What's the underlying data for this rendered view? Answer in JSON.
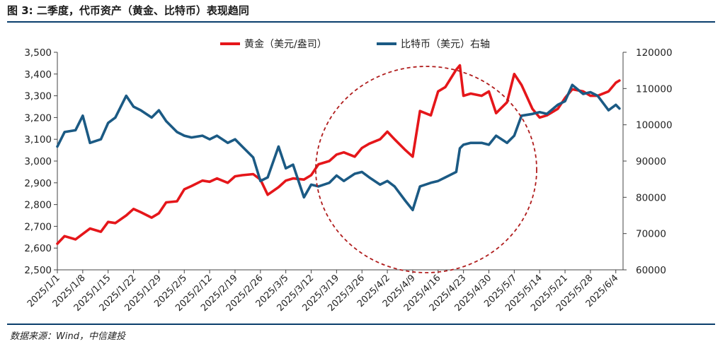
{
  "header": {
    "title": "图 3: 二季度，代币资产（黄金、比特币）表现趋同"
  },
  "footer": {
    "source": "数据来源：Wind，中信建投"
  },
  "chart_data": {
    "type": "line",
    "title": "",
    "legend_position": "top-center",
    "grid": false,
    "x_ticks": [
      "2025/1/1",
      "2025/1/8",
      "2025/1/15",
      "2025/1/22",
      "2025/1/29",
      "2025/2/5",
      "2025/2/12",
      "2025/2/19",
      "2025/2/26",
      "2025/3/5",
      "2025/3/12",
      "2025/3/19",
      "2025/3/26",
      "2025/4/2",
      "2025/4/9",
      "2025/4/16",
      "2025/4/23",
      "2025/4/30",
      "2025/5/7",
      "2025/5/14",
      "2025/5/21",
      "2025/5/28",
      "2025/6/4"
    ],
    "x_range": [
      "2025/1/1",
      "2025/6/6"
    ],
    "y_left": {
      "ylim": [
        2500,
        3500
      ],
      "ticks": [
        "2,500",
        "2,600",
        "2,700",
        "2,800",
        "2,900",
        "3,000",
        "3,100",
        "3,200",
        "3,300",
        "3,400",
        "3,500"
      ]
    },
    "y_right": {
      "ylim": [
        60000,
        120000
      ],
      "ticks": [
        "60000",
        "70000",
        "80000",
        "90000",
        "100000",
        "110000",
        "120000"
      ]
    },
    "annotation": {
      "shape": "dashed-circle",
      "color": "#b01c1c"
    },
    "series": [
      {
        "name": "黄金（美元/盎司）",
        "axis": "left",
        "color": "#e5161a",
        "x": [
          "2025/1/1",
          "2025/1/3",
          "2025/1/6",
          "2025/1/8",
          "2025/1/10",
          "2025/1/13",
          "2025/1/15",
          "2025/1/17",
          "2025/1/20",
          "2025/1/22",
          "2025/1/24",
          "2025/1/27",
          "2025/1/29",
          "2025/1/31",
          "2025/2/3",
          "2025/2/5",
          "2025/2/7",
          "2025/2/10",
          "2025/2/12",
          "2025/2/14",
          "2025/2/17",
          "2025/2/19",
          "2025/2/21",
          "2025/2/24",
          "2025/2/26",
          "2025/2/28",
          "2025/3/3",
          "2025/3/5",
          "2025/3/7",
          "2025/3/10",
          "2025/3/12",
          "2025/3/14",
          "2025/3/17",
          "2025/3/19",
          "2025/3/21",
          "2025/3/24",
          "2025/3/26",
          "2025/3/28",
          "2025/3/31",
          "2025/4/2",
          "2025/4/4",
          "2025/4/7",
          "2025/4/9",
          "2025/4/11",
          "2025/4/14",
          "2025/4/16",
          "2025/4/18",
          "2025/4/21",
          "2025/4/22",
          "2025/4/23",
          "2025/4/25",
          "2025/4/28",
          "2025/4/30",
          "2025/5/2",
          "2025/5/5",
          "2025/5/7",
          "2025/5/9",
          "2025/5/12",
          "2025/5/14",
          "2025/5/16",
          "2025/5/19",
          "2025/5/21",
          "2025/5/23",
          "2025/5/26",
          "2025/5/28",
          "2025/5/30",
          "2025/6/2",
          "2025/6/4",
          "2025/6/5"
        ],
        "values": [
          2620,
          2655,
          2640,
          2665,
          2690,
          2675,
          2720,
          2715,
          2750,
          2780,
          2765,
          2740,
          2760,
          2810,
          2815,
          2870,
          2885,
          2910,
          2905,
          2920,
          2900,
          2930,
          2935,
          2940,
          2915,
          2845,
          2880,
          2910,
          2920,
          2915,
          2935,
          2985,
          3000,
          3030,
          3040,
          3020,
          3060,
          3080,
          3100,
          3135,
          3100,
          3050,
          3020,
          3230,
          3210,
          3320,
          3340,
          3420,
          3440,
          3300,
          3310,
          3300,
          3320,
          3220,
          3270,
          3400,
          3350,
          3240,
          3200,
          3210,
          3240,
          3290,
          3330,
          3320,
          3300,
          3300,
          3320,
          3360,
          3370
        ]
      },
      {
        "name": "比特币（美元）右轴",
        "axis": "right",
        "color": "#1b5a84",
        "x": [
          "2025/1/1",
          "2025/1/3",
          "2025/1/6",
          "2025/1/8",
          "2025/1/10",
          "2025/1/13",
          "2025/1/15",
          "2025/1/17",
          "2025/1/20",
          "2025/1/22",
          "2025/1/24",
          "2025/1/27",
          "2025/1/29",
          "2025/1/31",
          "2025/2/3",
          "2025/2/5",
          "2025/2/7",
          "2025/2/10",
          "2025/2/12",
          "2025/2/14",
          "2025/2/17",
          "2025/2/19",
          "2025/2/21",
          "2025/2/24",
          "2025/2/26",
          "2025/2/28",
          "2025/3/3",
          "2025/3/5",
          "2025/3/7",
          "2025/3/10",
          "2025/3/12",
          "2025/3/14",
          "2025/3/17",
          "2025/3/19",
          "2025/3/21",
          "2025/3/24",
          "2025/3/26",
          "2025/3/28",
          "2025/3/31",
          "2025/4/2",
          "2025/4/4",
          "2025/4/7",
          "2025/4/9",
          "2025/4/11",
          "2025/4/14",
          "2025/4/16",
          "2025/4/18",
          "2025/4/21",
          "2025/4/22",
          "2025/4/23",
          "2025/4/25",
          "2025/4/28",
          "2025/4/30",
          "2025/5/2",
          "2025/5/5",
          "2025/5/7",
          "2025/5/9",
          "2025/5/12",
          "2025/5/14",
          "2025/5/16",
          "2025/5/19",
          "2025/5/21",
          "2025/5/23",
          "2025/5/26",
          "2025/5/28",
          "2025/5/30",
          "2025/6/2",
          "2025/6/4",
          "2025/6/5"
        ],
        "values": [
          94000,
          98000,
          98500,
          102500,
          95000,
          96000,
          100500,
          102000,
          108000,
          105000,
          104000,
          102000,
          104000,
          101000,
          98000,
          97000,
          96500,
          97000,
          96000,
          97000,
          95000,
          96000,
          94000,
          91000,
          84500,
          85500,
          94000,
          88000,
          89000,
          80000,
          83500,
          83000,
          84000,
          86000,
          84500,
          86500,
          87000,
          85500,
          83500,
          84500,
          83000,
          79000,
          76500,
          83000,
          84000,
          84500,
          85500,
          87000,
          93500,
          94500,
          95000,
          95000,
          94500,
          97000,
          95000,
          97000,
          102500,
          103000,
          103500,
          103000,
          105500,
          106500,
          111000,
          108500,
          109000,
          108000,
          104000,
          105500,
          104500
        ]
      }
    ]
  }
}
